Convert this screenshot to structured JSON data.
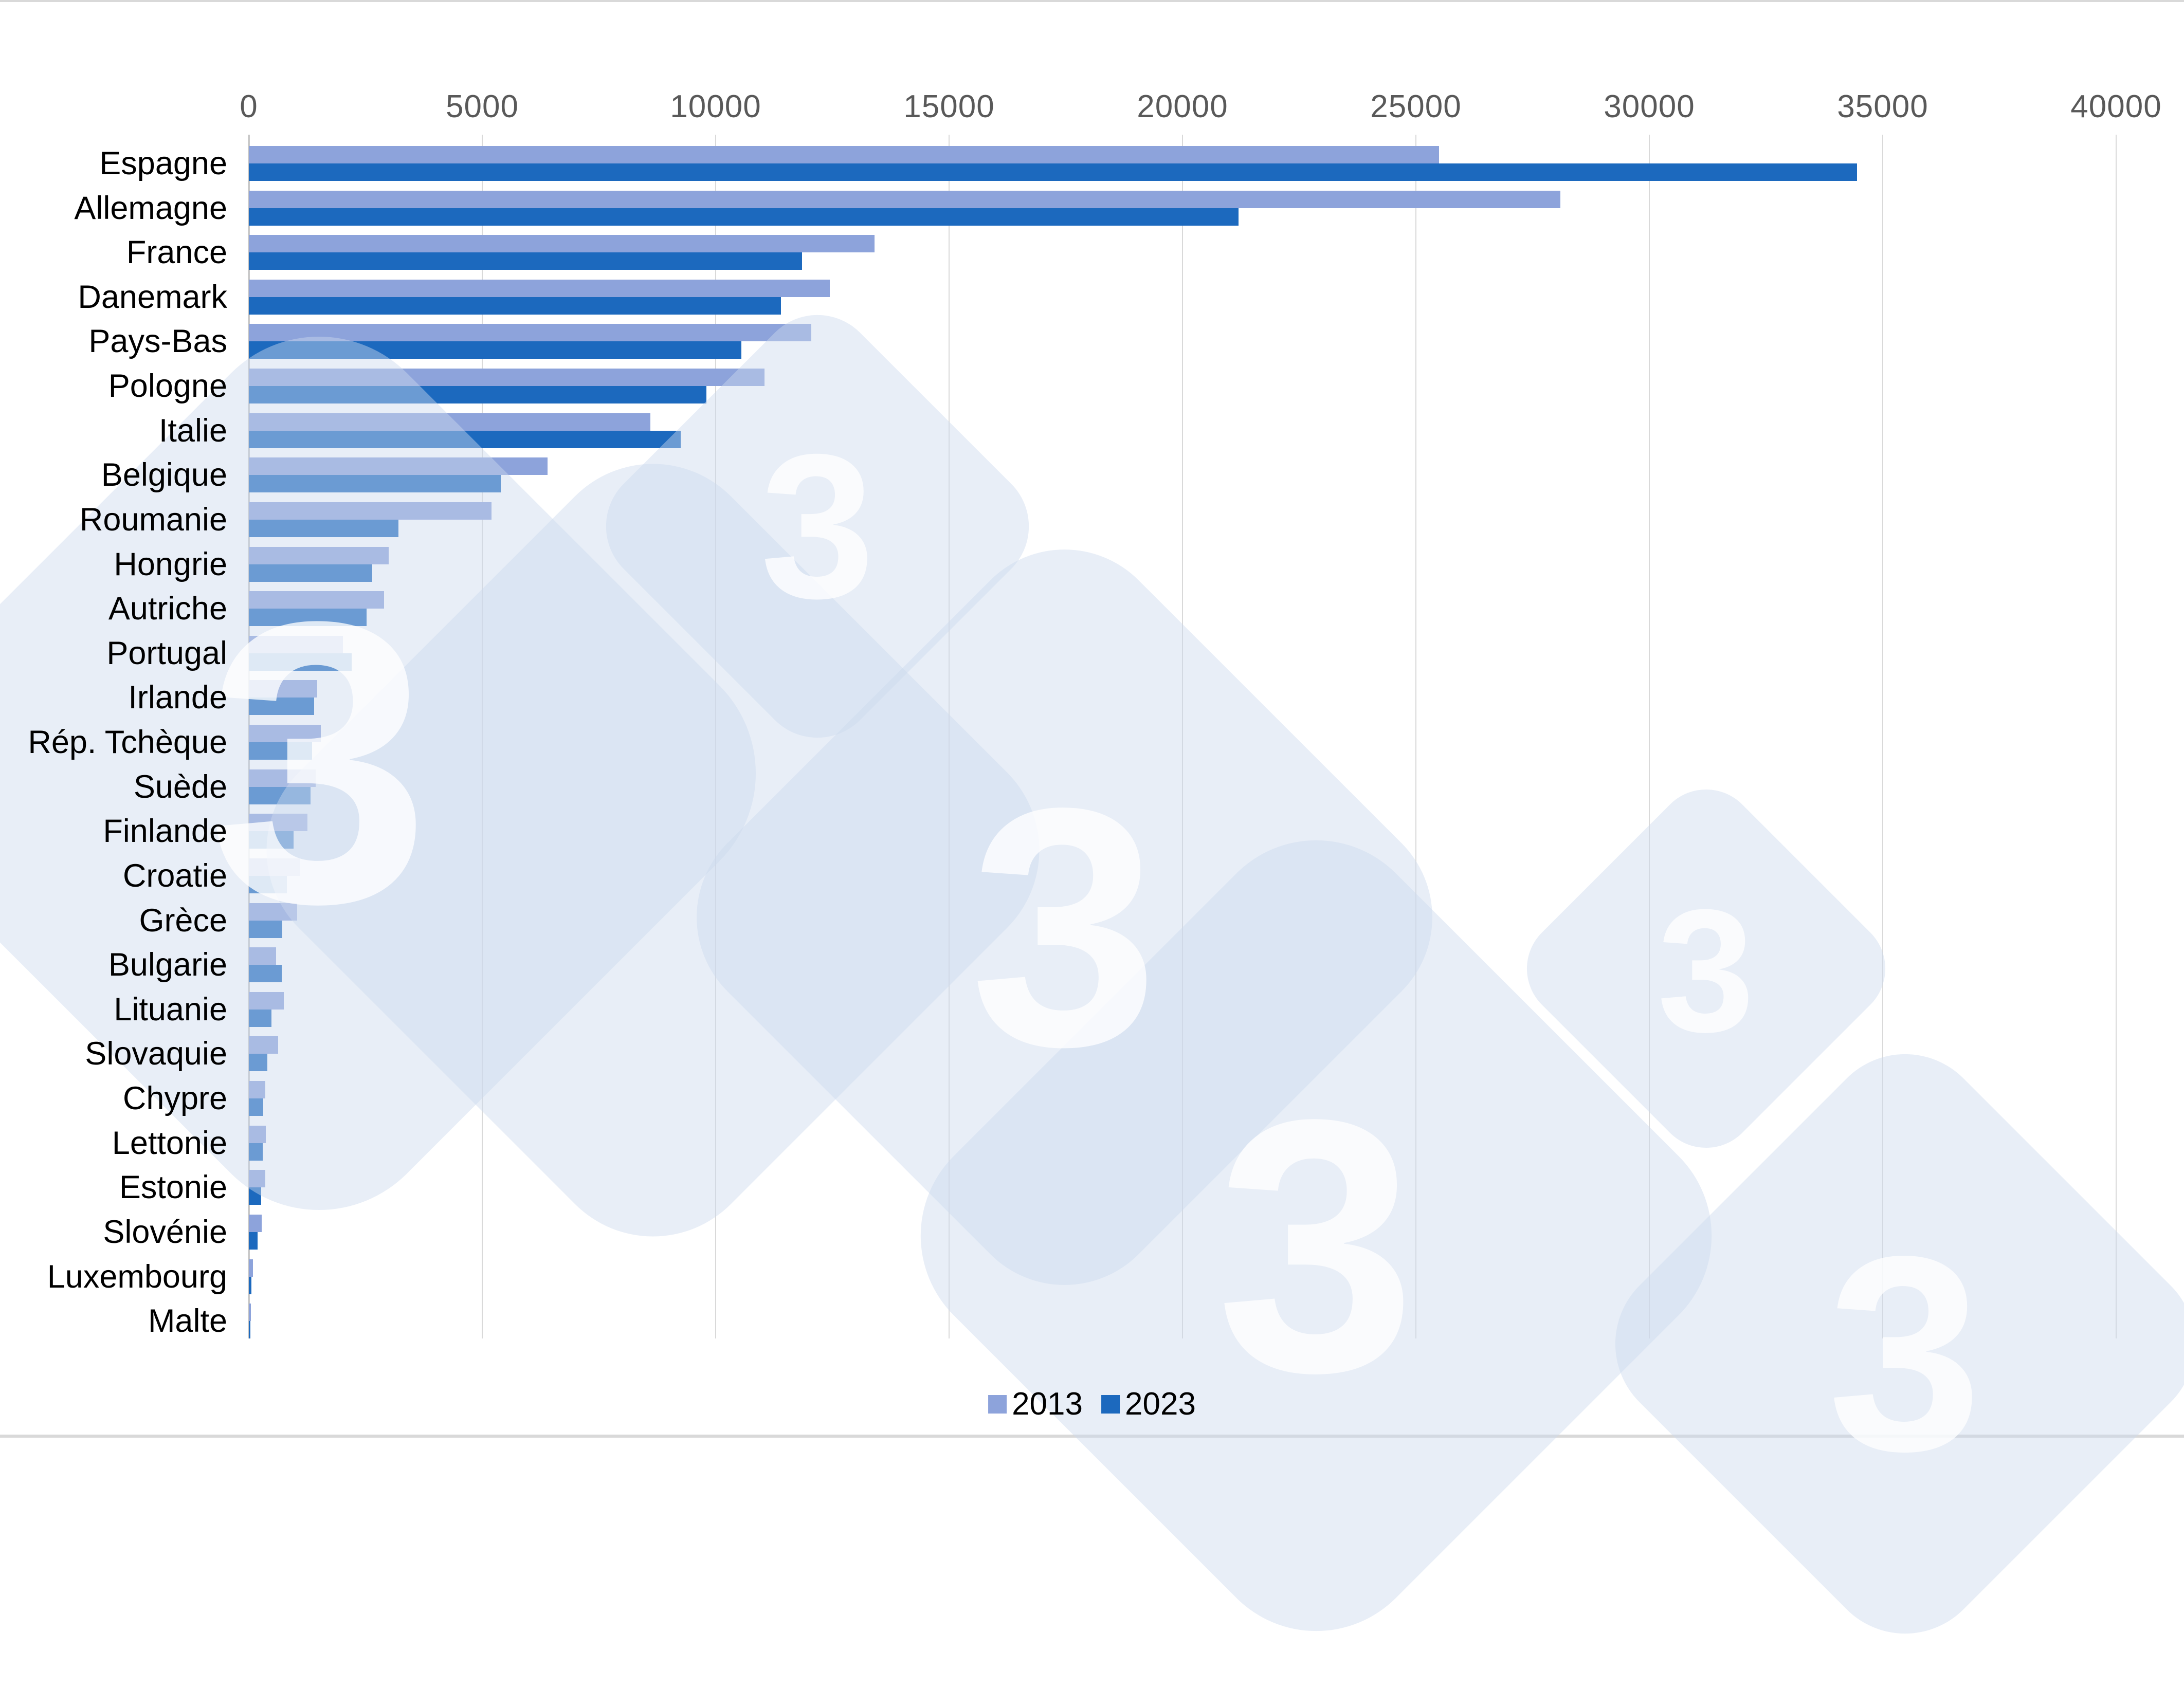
{
  "chart_data": {
    "type": "bar",
    "orientation": "horizontal",
    "title": "",
    "categories": [
      "Espagne",
      "Allemagne",
      "France",
      "Danemark",
      "Pays-Bas",
      "Pologne",
      "Italie",
      "Belgique",
      "Roumanie",
      "Hongrie",
      "Autriche",
      "Portugal",
      "Irlande",
      "Rép. Tchèque",
      "Suède",
      "Finlande",
      "Croatie",
      "Grèce",
      "Bulgarie",
      "Lituanie",
      "Slovaquie",
      "Chypre",
      "Lettonie",
      "Estonie",
      "Slovénie",
      "Luxembourg",
      "Malte"
    ],
    "series": [
      {
        "name": "2013",
        "color": "#8DA3DB",
        "values": [
          25500,
          28100,
          13400,
          12450,
          12050,
          11050,
          8600,
          6400,
          5200,
          3000,
          2900,
          2020,
          1460,
          1540,
          1430,
          1260,
          1100,
          1030,
          585,
          750,
          630,
          350,
          365,
          355,
          275,
          90,
          45
        ]
      },
      {
        "name": "2023",
        "color": "#1C69BE",
        "values": [
          34450,
          21200,
          11850,
          11400,
          10550,
          9800,
          9250,
          5400,
          3200,
          2640,
          2520,
          2200,
          1400,
          1350,
          1320,
          960,
          820,
          720,
          700,
          480,
          400,
          310,
          300,
          265,
          185,
          60,
          30
        ]
      }
    ],
    "x_axis": {
      "min": 0,
      "max": 40000,
      "tick_step": 5000,
      "tick_labels": [
        "0",
        "5000",
        "10000",
        "15000",
        "20000",
        "25000",
        "30000",
        "35000",
        "40000"
      ]
    },
    "y_axis": {
      "label": ""
    },
    "grid": true,
    "legend_position": "bottom-center",
    "watermark_text": "3",
    "colors": {
      "gridline": "#d9d9d9",
      "tick_text": "#595959",
      "label_text": "#000000",
      "watermark_fill": "#dce6f3"
    }
  }
}
